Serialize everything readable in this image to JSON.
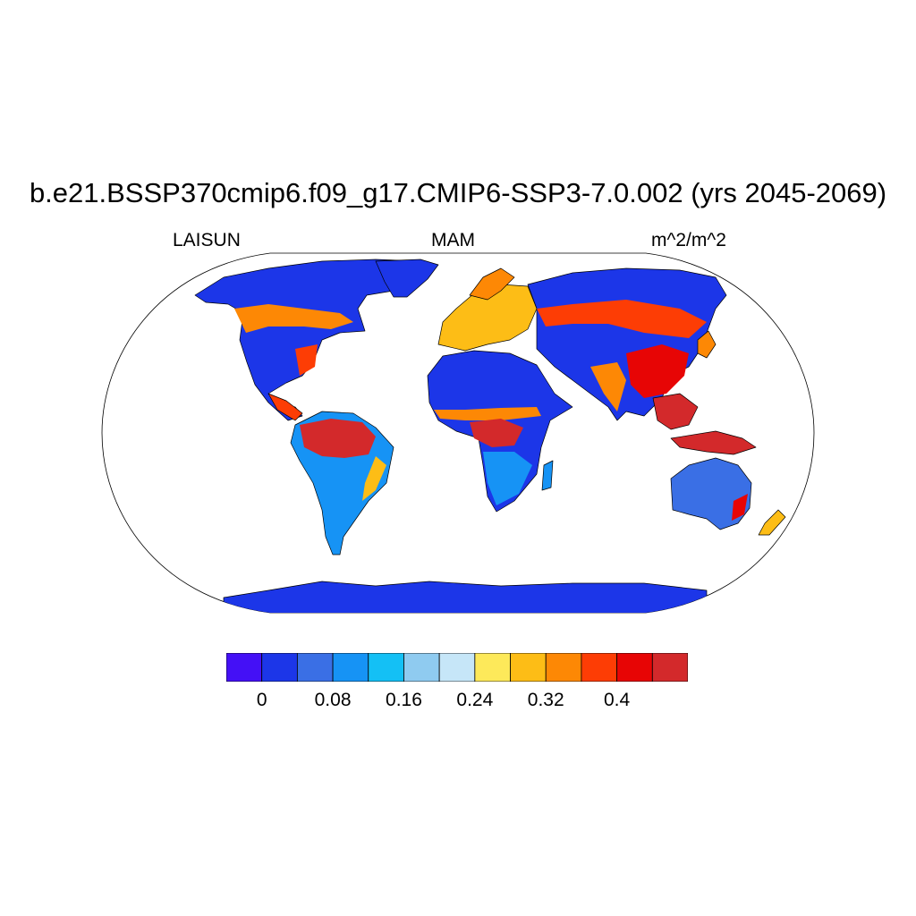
{
  "title": "b.e21.BSSP370cmip6.f09_g17.CMIP6-SSP3-7.0.002 (yrs 2045-2069)",
  "subtitle_left": "LAISUN",
  "subtitle_center": "MAM",
  "subtitle_right": "m^2/m^2",
  "colorbar": {
    "colors": [
      "#4410f6",
      "#1c36e8",
      "#3a6fe5",
      "#1693f5",
      "#14c0f5",
      "#8fcbf0",
      "#c6e6f8",
      "#fde95a",
      "#fdbd16",
      "#fd8805",
      "#fd3d05",
      "#e70505",
      "#d3292b"
    ],
    "tick_labels": [
      "0",
      "0.08",
      "0.16",
      "0.24",
      "0.32",
      "0.4"
    ]
  },
  "regions": [
    {
      "name": "amazon",
      "level": 12
    },
    {
      "name": "central-africa",
      "level": 12
    },
    {
      "name": "southeast-asia",
      "level": 11
    },
    {
      "name": "sahara",
      "level": 1
    },
    {
      "name": "arctic",
      "level": 1
    },
    {
      "name": "antarctica",
      "level": 1
    },
    {
      "name": "australia",
      "level": 2
    },
    {
      "name": "boreal-forest",
      "level": 9
    },
    {
      "name": "europe",
      "level": 8
    }
  ]
}
